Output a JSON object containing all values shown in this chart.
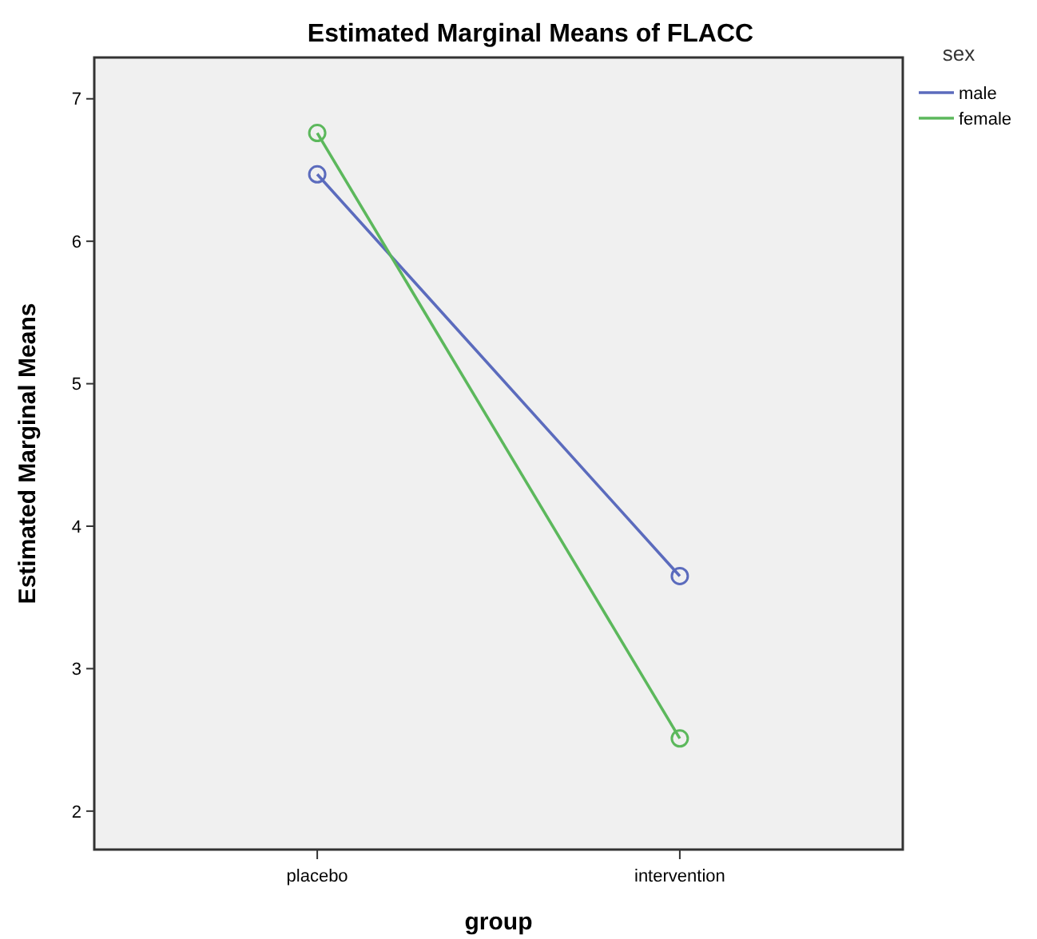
{
  "chart_data": {
    "type": "line",
    "title": "Estimated Marginal Means of FLACC",
    "xlabel": "group",
    "ylabel": "Estimated Marginal Means",
    "legend_title": "sex",
    "categories": [
      "placebo",
      "intervention"
    ],
    "series": [
      {
        "name": "male",
        "color": "#5b6bbd",
        "values": [
          6.47,
          3.65
        ]
      },
      {
        "name": "female",
        "color": "#5cb85c",
        "values": [
          6.76,
          2.51
        ]
      }
    ],
    "ylim": [
      1.73,
      7.29
    ],
    "yticks": [
      2,
      3,
      4,
      5,
      6,
      7
    ],
    "marker": "circle",
    "legend": "top right",
    "grid": false
  }
}
